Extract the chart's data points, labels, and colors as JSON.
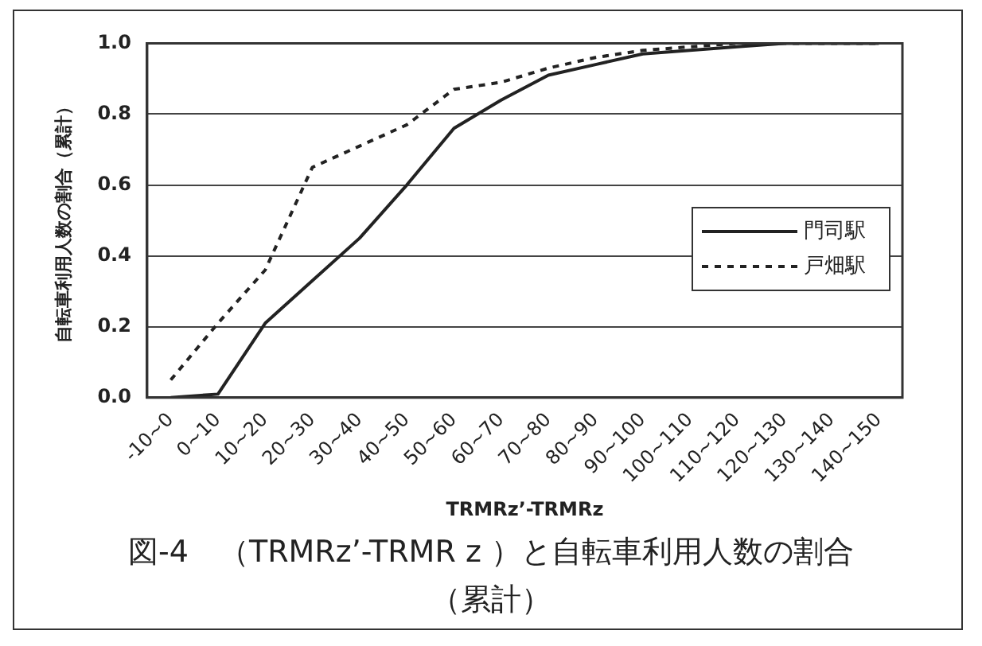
{
  "chart_data": {
    "type": "line",
    "title": "図-4　（TRMRz’-TRMR z ）と自転車利用人数の割合",
    "subtitle": "（累計）",
    "xlabel": "TRMRz’-TRMRz",
    "ylabel": "自転車利用人数の割合（累計）",
    "categories": [
      "-10~0",
      "0~10",
      "10~20",
      "20~30",
      "30~40",
      "40~50",
      "50~60",
      "60~70",
      "70~80",
      "80~90",
      "90~100",
      "100~110",
      "110~120",
      "120~130",
      "130~140",
      "140~150"
    ],
    "series": [
      {
        "name": "門司駅",
        "color": "#222222",
        "line_style": "solid",
        "values": [
          0,
          0.01,
          0.21,
          0.33,
          0.45,
          0.6,
          0.76,
          0.84,
          0.91,
          0.94,
          0.97,
          0.98,
          0.99,
          1.0,
          1.0,
          1.0
        ]
      },
      {
        "name": "戸畑駅",
        "color": "#222222",
        "line_style": "dashed",
        "values": [
          0.05,
          0.21,
          0.36,
          0.65,
          0.71,
          0.77,
          0.87,
          0.89,
          0.93,
          0.96,
          0.98,
          0.99,
          1.0,
          1.0,
          1.0,
          1.0
        ]
      }
    ],
    "ylim": [
      0,
      1
    ],
    "yticks": [
      {
        "value": 0,
        "label": "0.0"
      },
      {
        "value": 0.2,
        "label": "0.2"
      },
      {
        "value": 0.4,
        "label": "0.4"
      },
      {
        "value": 0.6,
        "label": "0.6"
      },
      {
        "value": 0.8,
        "label": "0.8"
      },
      {
        "value": 1,
        "label": "1.0"
      }
    ],
    "grid": "y",
    "legend": "right",
    "marker": "none"
  }
}
